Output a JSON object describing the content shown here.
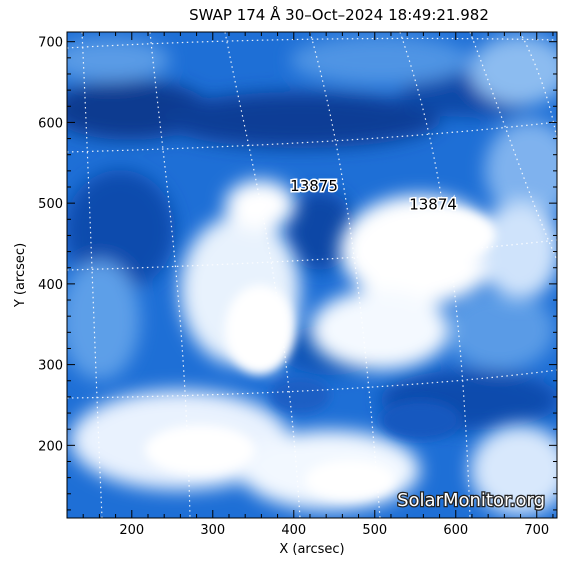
{
  "title": "SWAP 174 Å 30–Oct–2024 18:49:21.982",
  "xlabel": "X (arcsec)",
  "ylabel": "Y (arcsec)",
  "x_range": [
    120,
    725
  ],
  "y_range": [
    110,
    712
  ],
  "x_ticks": [
    200,
    300,
    400,
    500,
    600,
    700
  ],
  "y_ticks": [
    200,
    300,
    400,
    500,
    600,
    700
  ],
  "x_tick_labels": [
    "200",
    "300",
    "400",
    "500",
    "600",
    "700"
  ],
  "y_tick_labels": [
    "200",
    "300",
    "400",
    "500",
    "600",
    "700"
  ],
  "regions": [
    {
      "label": "13875",
      "x": 425,
      "y": 515
    },
    {
      "label": "13874",
      "x": 572,
      "y": 492
    }
  ],
  "watermark": "SolarMonitor.org",
  "colors": {
    "deep": "#05246a",
    "mid": "#1e6fd6",
    "light": "#7fb2ee",
    "bright": "#ffffff"
  }
}
